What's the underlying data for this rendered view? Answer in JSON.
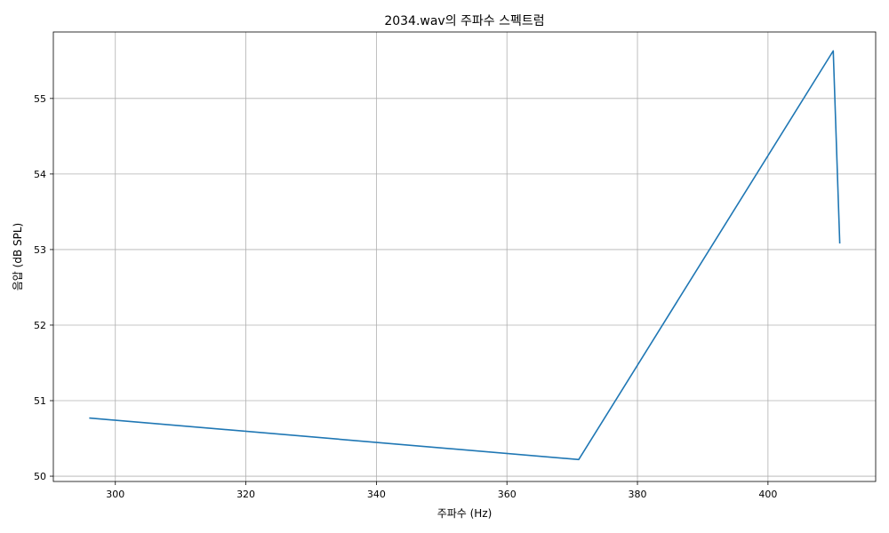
{
  "chart_data": {
    "type": "line",
    "title": "2034.wav의 주파수 스펙트럼",
    "xlabel": "주파수 (Hz)",
    "ylabel": "음압 (dB SPL)",
    "xlim": [
      290.5,
      416.5
    ],
    "ylim": [
      49.93,
      55.88
    ],
    "grid": true,
    "x_ticks": [
      300,
      320,
      340,
      360,
      380,
      400
    ],
    "y_ticks": [
      50,
      51,
      52,
      53,
      54,
      55
    ],
    "series": [
      {
        "color": "#1f77b4",
        "x": [
          296,
          371,
          410,
          411
        ],
        "y": [
          50.77,
          50.22,
          55.63,
          53.08
        ]
      }
    ]
  }
}
